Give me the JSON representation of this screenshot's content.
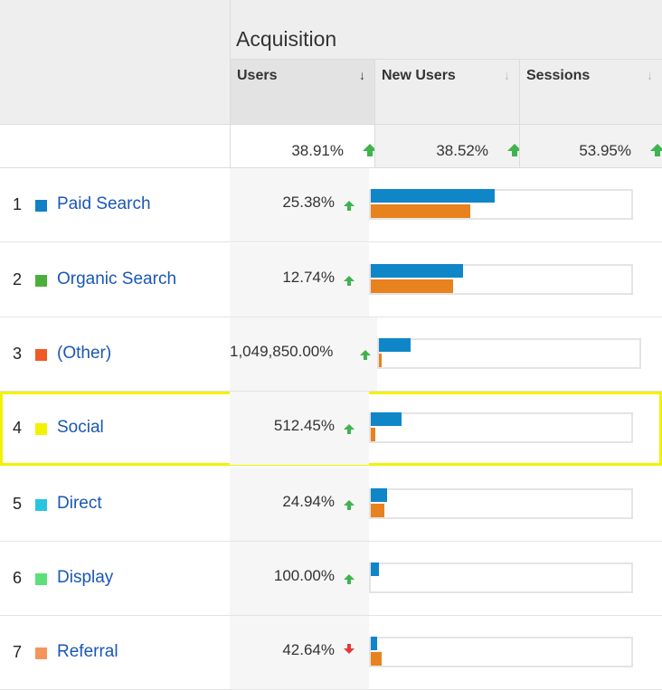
{
  "header": {
    "title": "Acquisition"
  },
  "columns": [
    {
      "label": "Users",
      "sort_icon": "sort-down-icon",
      "active": true
    },
    {
      "label": "New Users",
      "sort_icon": "sort-down-icon",
      "active": false
    },
    {
      "label": "Sessions",
      "sort_icon": "sort-down-icon",
      "active": false
    }
  ],
  "totals": [
    {
      "value": "38.91%",
      "trend": "up"
    },
    {
      "value": "38.52%",
      "trend": "up"
    },
    {
      "value": "53.95%",
      "trend": "up"
    }
  ],
  "colors": {
    "bar_primary": "#0f86c8",
    "bar_secondary": "#e8821e",
    "trend_up": "#3fb34f",
    "trend_down": "#e53935",
    "highlight": "#f2f200",
    "link": "#1a57b5"
  },
  "rows": [
    {
      "rank": "1",
      "channel": "Paid Search",
      "swatch": "#1380c6",
      "change": "25.38%",
      "trend": "up",
      "bar_primary": 0.47,
      "bar_secondary": 0.375,
      "highlighted": false
    },
    {
      "rank": "2",
      "channel": "Organic Search",
      "swatch": "#4caf3c",
      "change": "12.74%",
      "trend": "up",
      "bar_primary": 0.35,
      "bar_secondary": 0.31,
      "highlighted": false
    },
    {
      "rank": "3",
      "channel": "(Other)",
      "swatch": "#f05a24",
      "change": "1,049,850.00%",
      "trend": "up",
      "bar_primary": 0.12,
      "bar_secondary": 0.01,
      "highlighted": false
    },
    {
      "rank": "4",
      "channel": "Social",
      "swatch": "#f2f200",
      "change": "512.45%",
      "trend": "up",
      "bar_primary": 0.115,
      "bar_secondary": 0.018,
      "highlighted": true
    },
    {
      "rank": "5",
      "channel": "Direct",
      "swatch": "#29c5e0",
      "change": "24.94%",
      "trend": "up",
      "bar_primary": 0.062,
      "bar_secondary": 0.05,
      "highlighted": false
    },
    {
      "rank": "6",
      "channel": "Display",
      "swatch": "#5de07a",
      "change": "100.00%",
      "trend": "up",
      "bar_primary": 0.03,
      "bar_secondary": 0.0,
      "highlighted": false
    },
    {
      "rank": "7",
      "channel": "Referral",
      "swatch": "#f5955a",
      "change": "42.64%",
      "trend": "down",
      "bar_primary": 0.025,
      "bar_secondary": 0.04,
      "highlighted": false
    }
  ]
}
